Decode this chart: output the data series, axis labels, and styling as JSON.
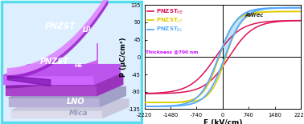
{
  "left_bg": "#ddeeff",
  "left_border": "#55ddee",
  "mica_color": "#e8e8f0",
  "mica_text_color": "#9999bb",
  "lno_color": "#c0b8e0",
  "lno_text_color": "#ffffff",
  "he_dark": "#8822aa",
  "he_mid": "#aa44cc",
  "he_light": "#cc77ee",
  "lp_dark": "#9933bb",
  "lp_mid": "#bb55dd",
  "lp_light": "#dd88ff",
  "right_bg": "#ffffff",
  "xlim": [
    -2220,
    2220
  ],
  "ylim": [
    -135,
    135
  ],
  "xticks": [
    -2220,
    -1480,
    -740,
    0,
    740,
    1480,
    2220
  ],
  "yticks": [
    -135,
    -90,
    -45,
    0,
    45,
    90,
    135
  ],
  "xlabel": "E (kV/cm)",
  "ylabel": "P (μC/cm²)",
  "he_color": "#dd1155",
  "lp_color": "#ddcc00",
  "bl_color": "#55aaff",
  "fill_color": "#aaddff",
  "legend_color": "#cc00ff",
  "awrec_color": "#222222"
}
